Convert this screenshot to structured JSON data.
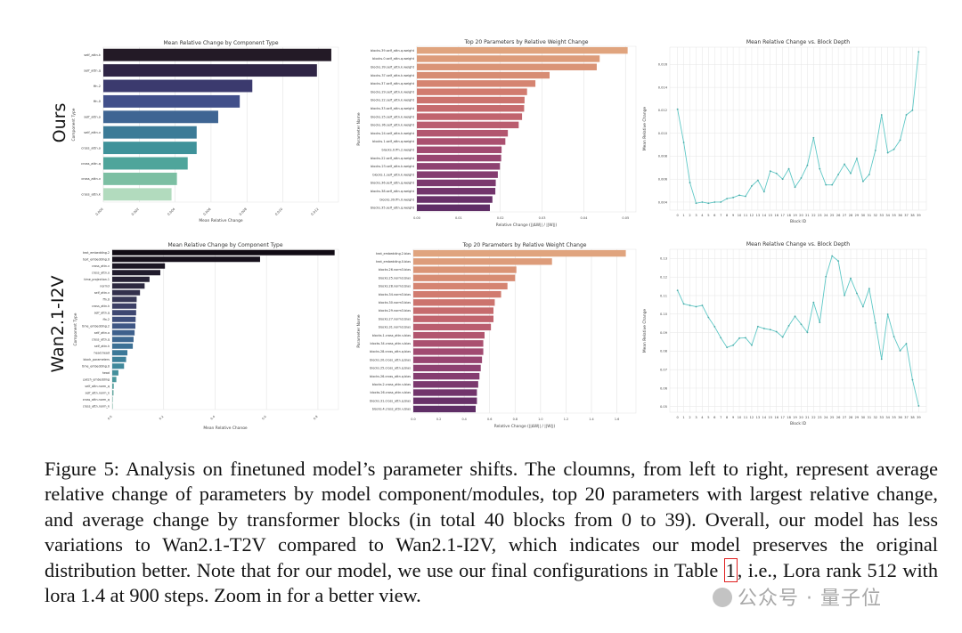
{
  "figure": {
    "row_labels": [
      "Ours",
      "Wan2.1-I2V"
    ],
    "caption": {
      "part1": "Figure 5: Analysis on finetuned model’s parameter shifts. The cloumns, from left to right, represent average relative change of parameters by model component/modules, top 20 parameters with largest relative change, and average change by transformer blocks (in total 40 blocks from 0 to 39). Overall, our model has less variations to Wan2.1-T2V compared to Wan2.1-I2V, which indicates our model preserves the original distribution better. Note that for our model, we use our final configurations in Table ",
      "table_ref": "1",
      "part2": ", i.e., Lora rank 512 with lora 1.4 at 900 steps. Zoom in for a better view."
    },
    "watermark": "公众号 · 量子位"
  },
  "chart_data": [
    {
      "id": "ours-component",
      "type": "bar",
      "orientation": "horizontal",
      "title": "Mean Relative Change by Component Type",
      "xlabel": "Mean Relative Change",
      "ylabel": "Component Type",
      "xlim": [
        0,
        0.0131
      ],
      "xticks": [
        0.0,
        0.002,
        0.004,
        0.006,
        0.008,
        0.01,
        0.012
      ],
      "xtick_labels": [
        "0.000",
        "0.002",
        "0.004",
        "0.006",
        "0.008",
        "0.010",
        "0.012"
      ],
      "palette": "mako",
      "categories": [
        "self_attn.k",
        "self_attn.q",
        "ffn.2",
        "ffn.0",
        "self_attn.o",
        "self_attn.v",
        "cross_attn.o",
        "cross_attn.q",
        "cross_attn.v",
        "cross_attn.k"
      ],
      "values": [
        0.0127,
        0.0119,
        0.0083,
        0.0076,
        0.0064,
        0.0052,
        0.0052,
        0.0047,
        0.0041,
        0.0038
      ],
      "colors": [
        "#231a26",
        "#2f2545",
        "#3b3a6e",
        "#414f8a",
        "#3f6593",
        "#3c7b97",
        "#3f929a",
        "#4fa59b",
        "#7cbfa3",
        "#b2dbbe"
      ]
    },
    {
      "id": "ours-top20",
      "type": "bar",
      "orientation": "horizontal",
      "title": "Top 20 Parameters by Relative Weight Change",
      "xlabel": "Relative Change (||ΔW|| / ||W||)",
      "ylabel": "Parameter Name",
      "xlim": [
        0,
        0.0525
      ],
      "xticks": [
        0,
        0.01,
        0.02,
        0.03,
        0.04,
        0.05
      ],
      "xtick_labels": [
        "0.00",
        "0.01",
        "0.02",
        "0.03",
        "0.04",
        "0.05"
      ],
      "palette": "flare",
      "categories": [
        "blocks.39.self_attn.q.weight",
        "blocks.0.self_attn.q.weight",
        "blocks.39.self_attn.k.weight",
        "blocks.37.self_attn.k.weight",
        "blocks.37.self_attn.q.weight",
        "blocks.29.self_attn.k.weight",
        "blocks.22.self_attn.k.weight",
        "blocks.33.self_attn.q.weight",
        "blocks.25.self_attn.k.weight",
        "blocks.36.self_attn.k.weight",
        "blocks.24.self_attn.k.weight",
        "blocks.1.self_attn.q.weight",
        "blocks.0.ffn.2.weight",
        "blocks.22.self_attn.q.weight",
        "blocks.23.self_attn.k.weight",
        "blocks.1.self_attn.k.weight",
        "blocks.36.self_attn.q.weight",
        "blocks.38.self_attn.q.weight",
        "blocks.39.ffn.0.weight",
        "blocks.35.self_attn.q.weight"
      ],
      "values": [
        0.0505,
        0.0438,
        0.0431,
        0.0318,
        0.0284,
        0.0264,
        0.0258,
        0.0257,
        0.0252,
        0.0244,
        0.0218,
        0.0212,
        0.0203,
        0.0202,
        0.0199,
        0.0194,
        0.0189,
        0.0188,
        0.0181,
        0.0175
      ],
      "colors": [
        "#e0a47e",
        "#dd9c7a",
        "#da9476",
        "#d78c73",
        "#d58471",
        "#d17b6f",
        "#cc736e",
        "#c66b6e",
        "#c1646e",
        "#ba5d6f",
        "#b2566f",
        "#aa5070",
        "#a14a71",
        "#984571",
        "#8e4171",
        "#853d70",
        "#7b396e",
        "#72356c",
        "#683169",
        "#5f2e66"
      ]
    },
    {
      "id": "ours-depth",
      "type": "line",
      "title": "Mean Relative Change vs. Block Depth",
      "xlabel": "Block ID",
      "ylabel": "Mean Relative Change",
      "ylim": [
        0.0033,
        0.0175
      ],
      "yticks": [
        0.004,
        0.006,
        0.008,
        0.01,
        0.012,
        0.014,
        0.016
      ],
      "ytick_labels": [
        "0.004",
        "0.006",
        "0.008",
        "0.010",
        "0.012",
        "0.014",
        "0.016"
      ],
      "color": "#5ec8c6",
      "x": [
        0,
        1,
        2,
        3,
        4,
        5,
        6,
        7,
        8,
        9,
        10,
        11,
        12,
        13,
        14,
        15,
        16,
        17,
        18,
        19,
        20,
        21,
        22,
        23,
        24,
        25,
        26,
        27,
        28,
        29,
        30,
        31,
        32,
        33,
        34,
        35,
        36,
        37,
        38,
        39
      ],
      "y": [
        0.0121,
        0.0092,
        0.0057,
        0.0039,
        0.004,
        0.0039,
        0.004,
        0.004,
        0.0043,
        0.0044,
        0.0046,
        0.0045,
        0.0054,
        0.0059,
        0.0049,
        0.0067,
        0.0065,
        0.006,
        0.0069,
        0.0053,
        0.0061,
        0.0072,
        0.0096,
        0.0069,
        0.0055,
        0.0055,
        0.0064,
        0.0073,
        0.0065,
        0.0078,
        0.0058,
        0.0064,
        0.0085,
        0.0116,
        0.0083,
        0.0086,
        0.0094,
        0.0116,
        0.012,
        0.0171
      ]
    },
    {
      "id": "i2v-component",
      "type": "bar",
      "orientation": "horizontal",
      "title": "Mean Relative Change by Component Type",
      "xlabel": "Mean Relative Change",
      "ylabel": "Component Type",
      "xlim": [
        0,
        0.88
      ],
      "xticks": [
        0,
        0.2,
        0.4,
        0.6,
        0.8
      ],
      "xtick_labels": [
        "0.0",
        "0.2",
        "0.4",
        "0.6",
        "0.8"
      ],
      "palette": "mako",
      "categories": [
        "text_embedding.2",
        "text_embedding.0",
        "cross_attn.v",
        "cross_attn.o",
        "time_projection.1",
        "norm3",
        "self_attn.v",
        "ffn.0",
        "cross_attn.k",
        "self_attn.q",
        "ffn.2",
        "time_embedding.2",
        "self_attn.o",
        "cross_attn.q",
        "self_attn.k",
        "head.head",
        "block_parameters",
        "time_embedding.0",
        "head",
        "patch_embedding",
        "self_attn.norm_q",
        "self_attn.norm_k",
        "cross_attn.norm_q",
        "cross_attn.norm_k"
      ],
      "values": [
        0.865,
        0.575,
        0.205,
        0.187,
        0.145,
        0.126,
        0.108,
        0.095,
        0.094,
        0.093,
        0.091,
        0.09,
        0.087,
        0.083,
        0.08,
        0.059,
        0.054,
        0.046,
        0.024,
        0.016,
        0.006,
        0.005,
        0.002,
        0.002
      ],
      "colors": [
        "#120c15",
        "#17111c",
        "#1c1724",
        "#211c2d",
        "#272236",
        "#2d2940",
        "#33304c",
        "#383857",
        "#3c3f65",
        "#3e4771",
        "#3f4f7c",
        "#3f5785",
        "#3e608c",
        "#3e6891",
        "#3c7095",
        "#3b7898",
        "#3d8099",
        "#40889b",
        "#45909c",
        "#4b989d",
        "#55a09e",
        "#63a8a0",
        "#72b0a3",
        "#82b8a7"
      ]
    },
    {
      "id": "i2v-top20",
      "type": "bar",
      "orientation": "horizontal",
      "title": "Top 20 Parameters by Relative Weight Change",
      "xlabel": "Relative Change (||ΔW|| / ||W||)",
      "ylabel": "Parameter Name",
      "xlim": [
        0,
        1.75
      ],
      "xticks": [
        0,
        0.2,
        0.4,
        0.6,
        0.8,
        1.0,
        1.2,
        1.4,
        1.6
      ],
      "xtick_labels": [
        "0.0",
        "0.2",
        "0.4",
        "0.6",
        "0.8",
        "1.0",
        "1.2",
        "1.4",
        "1.6"
      ],
      "palette": "flare",
      "categories": [
        "text_embedding.2.bias",
        "text_embedding.0.bias",
        "blocks.26.norm3.bias",
        "blocks.25.norm3.bias",
        "blocks.28.norm3.bias",
        "blocks.34.norm3.bias",
        "blocks.30.norm3.bias",
        "blocks.29.norm3.bias",
        "blocks.27.norm3.bias",
        "blocks.31.norm3.bias",
        "blocks.1.cross_attn.v.bias",
        "blocks.34.cross_attn.v.bias",
        "blocks.28.cross_attn.q.bias",
        "blocks.20.cross_attn.q.bias",
        "blocks.25.cross_attn.q.bias",
        "blocks.26.cross_attn.q.bias",
        "blocks.2.cross_attn.v.bias",
        "blocks.26.cross_attn.v.bias",
        "blocks.31.cross_attn.q.bias",
        "blocks.4.cross_attn.v.bias"
      ],
      "values": [
        1.67,
        1.09,
        0.81,
        0.8,
        0.74,
        0.69,
        0.64,
        0.63,
        0.63,
        0.61,
        0.56,
        0.55,
        0.55,
        0.54,
        0.53,
        0.52,
        0.51,
        0.5,
        0.5,
        0.49
      ],
      "colors": [
        "#e0a47e",
        "#dd9c7a",
        "#da9476",
        "#d78c73",
        "#d58471",
        "#d17b6f",
        "#cc736e",
        "#c66b6e",
        "#c1646e",
        "#ba5d6f",
        "#b2566f",
        "#aa5070",
        "#a14a71",
        "#984571",
        "#8e4171",
        "#853d70",
        "#7b396e",
        "#72356c",
        "#683169",
        "#5f2e66"
      ]
    },
    {
      "id": "i2v-depth",
      "type": "line",
      "title": "Mean Relative Change vs. Block Depth",
      "xlabel": "Block ID",
      "ylabel": "Mean Relative Change",
      "ylim": [
        0.047,
        0.135
      ],
      "yticks": [
        0.05,
        0.06,
        0.07,
        0.08,
        0.09,
        0.1,
        0.11,
        0.12,
        0.13
      ],
      "ytick_labels": [
        "0.05",
        "0.06",
        "0.07",
        "0.08",
        "0.09",
        "0.10",
        "0.11",
        "0.12",
        "0.13"
      ],
      "color": "#5ec8c6",
      "x": [
        0,
        1,
        2,
        3,
        4,
        5,
        6,
        7,
        8,
        9,
        10,
        11,
        12,
        13,
        14,
        15,
        16,
        17,
        18,
        19,
        20,
        21,
        22,
        23,
        24,
        25,
        26,
        27,
        28,
        29,
        30,
        31,
        32,
        33,
        34,
        35,
        36,
        37,
        38,
        39
      ],
      "y": [
        0.1128,
        0.1055,
        0.1047,
        0.104,
        0.1047,
        0.0982,
        0.0932,
        0.0872,
        0.082,
        0.0832,
        0.087,
        0.0872,
        0.0832,
        0.0933,
        0.0922,
        0.0916,
        0.0905,
        0.0876,
        0.0937,
        0.0988,
        0.0945,
        0.0901,
        0.1063,
        0.0955,
        0.1202,
        0.1314,
        0.1287,
        0.1101,
        0.1193,
        0.1112,
        0.104,
        0.1137,
        0.0952,
        0.0757,
        0.0999,
        0.0878,
        0.0802,
        0.084,
        0.0645,
        0.0504
      ]
    }
  ]
}
